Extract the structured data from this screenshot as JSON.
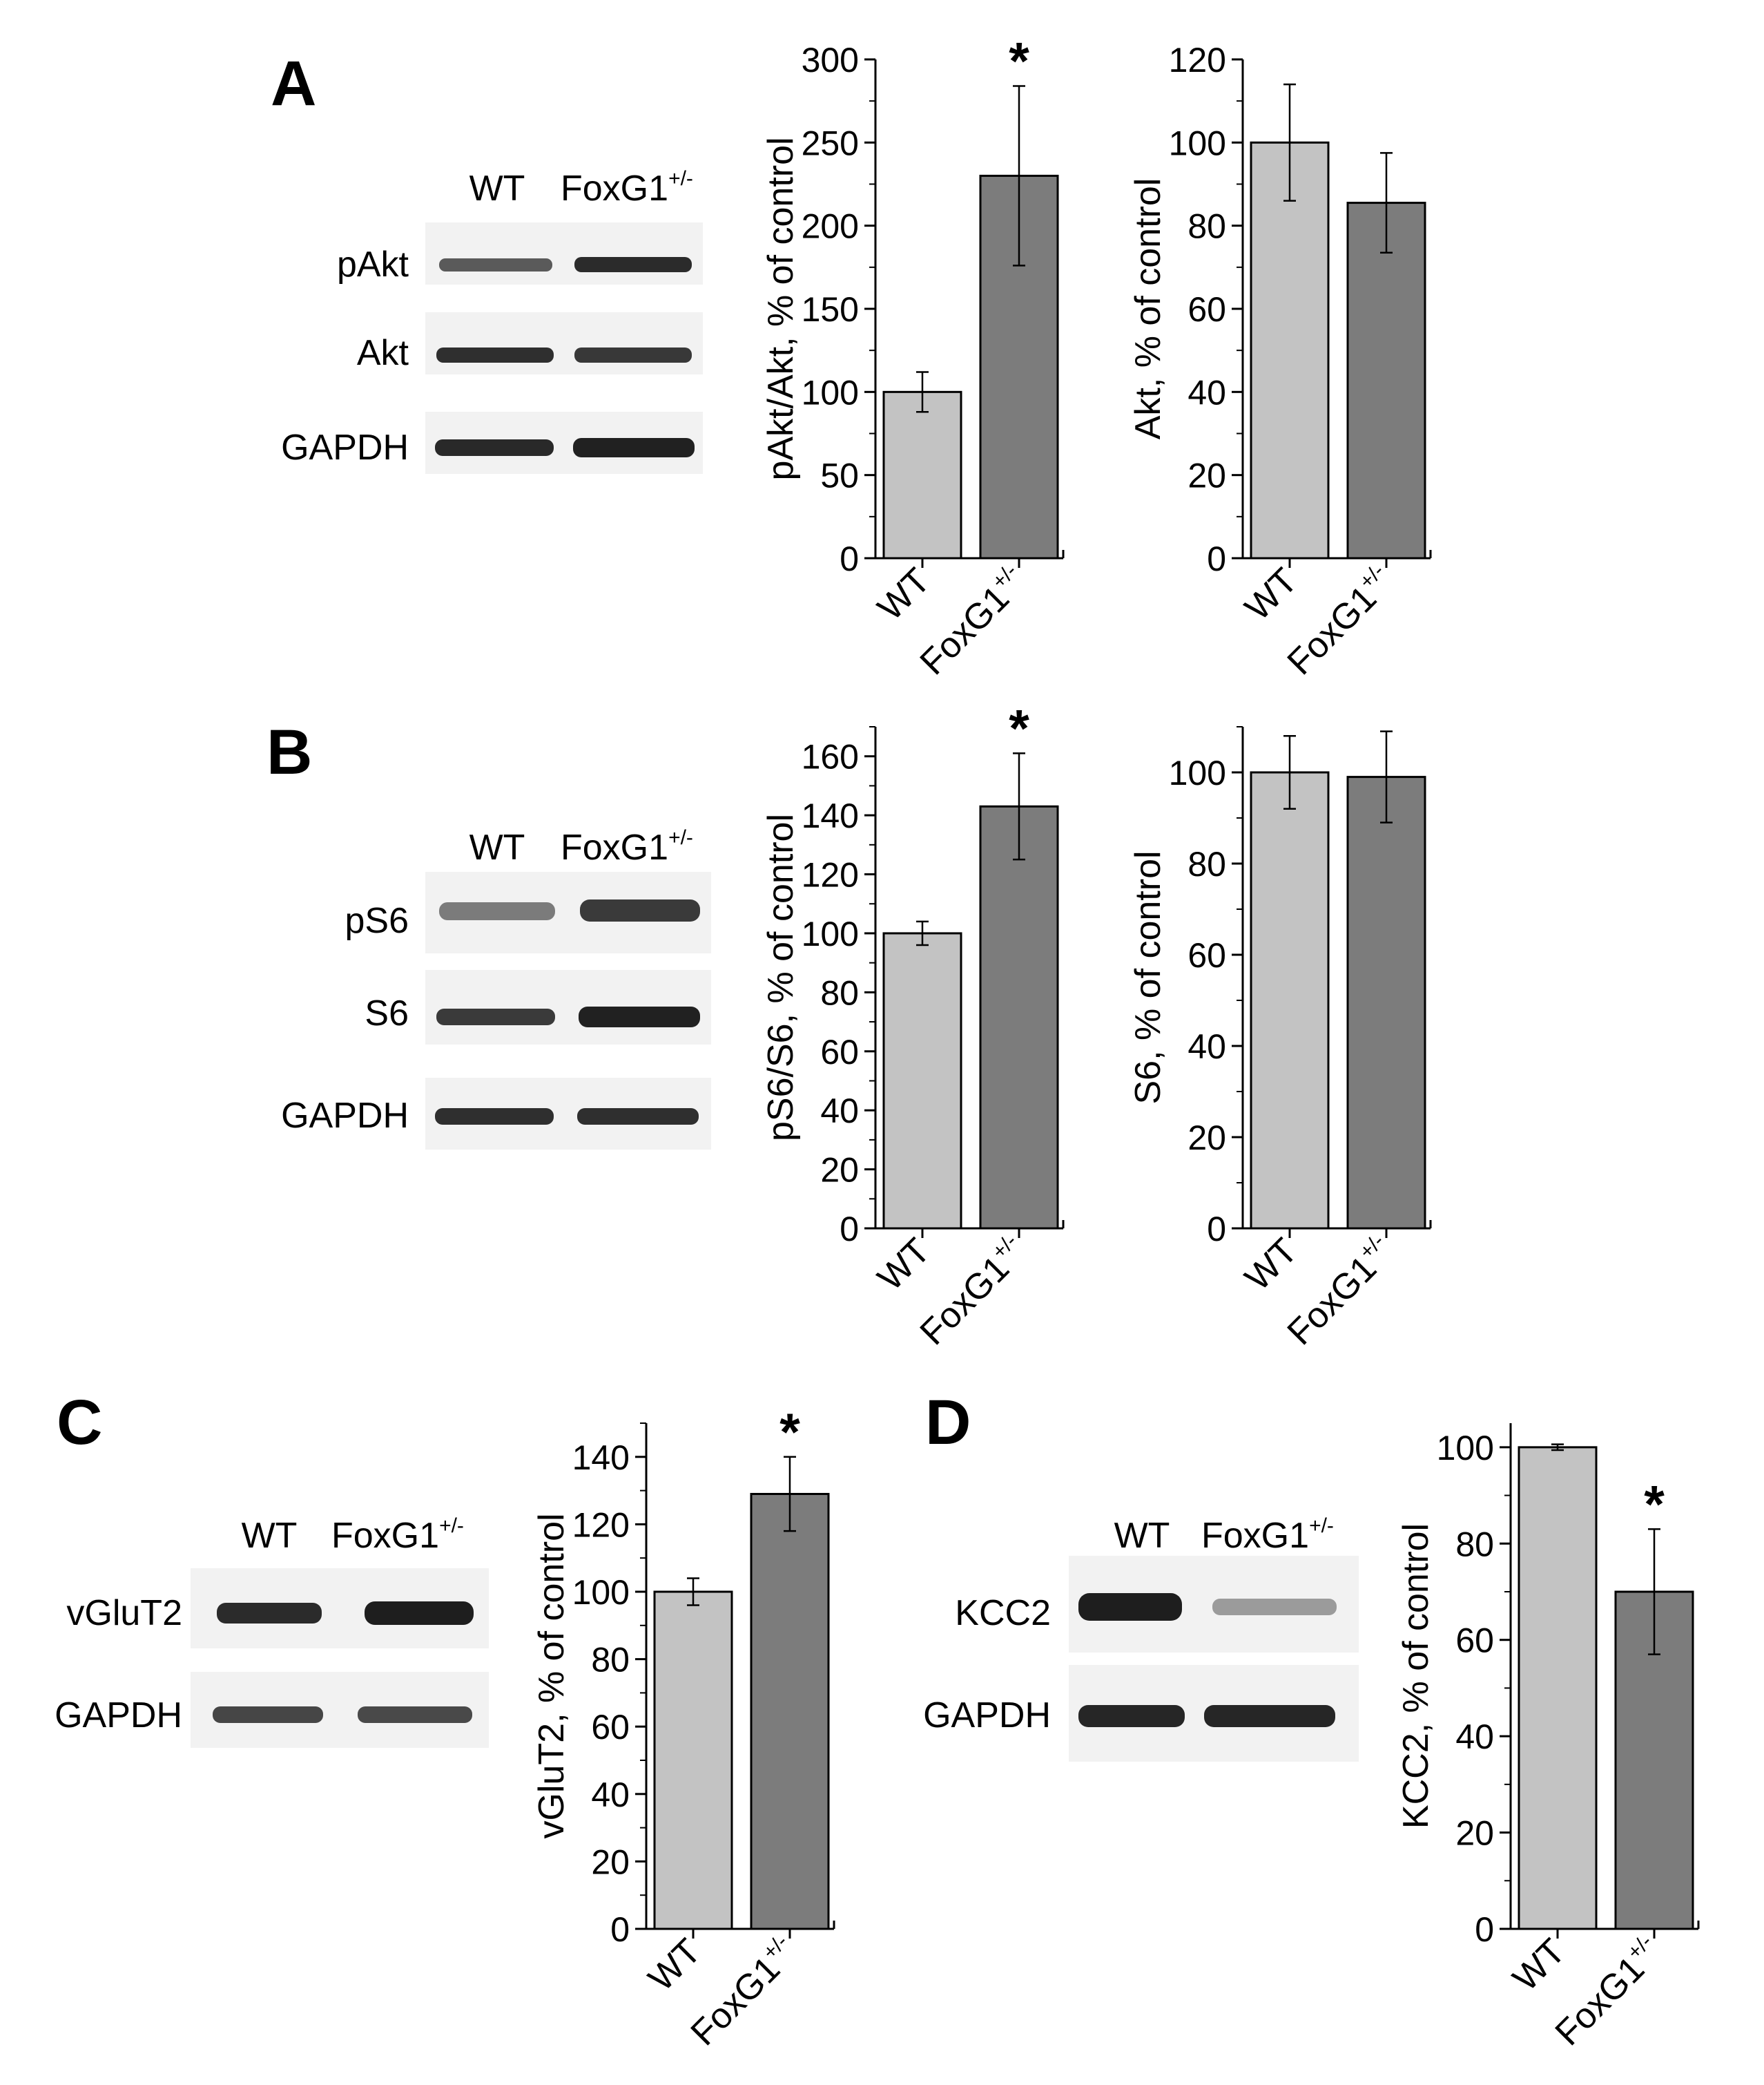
{
  "panels": [
    {
      "letter": "A",
      "blot": {
        "lanes": [
          "WT",
          "FoxG1"
        ],
        "lane_sup": "+/-",
        "rows": [
          "pAkt",
          "Akt",
          "GAPDH"
        ]
      }
    },
    {
      "letter": "B",
      "blot": {
        "lanes": [
          "WT",
          "FoxG1"
        ],
        "lane_sup": "+/-",
        "rows": [
          "pS6",
          "S6",
          "GAPDH"
        ]
      }
    },
    {
      "letter": "C",
      "blot": {
        "lanes": [
          "WT",
          "FoxG1"
        ],
        "lane_sup": "+/-",
        "rows": [
          "vGluT2",
          "GAPDH"
        ]
      }
    },
    {
      "letter": "D",
      "blot": {
        "lanes": [
          "WT",
          "FoxG1"
        ],
        "lane_sup": "+/-",
        "rows": [
          "KCC2",
          "GAPDH"
        ]
      }
    }
  ],
  "colors": {
    "wt_bar": "#c3c3c3",
    "foxg1_bar": "#7c7c7c",
    "band": "#1a1a1a",
    "blot_bg": "#f2f2f2"
  },
  "chart_data": [
    {
      "type": "bar",
      "panel": "A",
      "categories": [
        "WT",
        "FoxG1+/-"
      ],
      "values": [
        100,
        230
      ],
      "errors": [
        12,
        54
      ],
      "ylabel": "pAkt/Akt, % of control",
      "ylim": [
        0,
        300
      ],
      "yticks": [
        0,
        50,
        100,
        150,
        200,
        250,
        300
      ],
      "annotations": [
        {
          "category": "FoxG1+/-",
          "text": "*"
        }
      ]
    },
    {
      "type": "bar",
      "panel": "A",
      "categories": [
        "WT",
        "FoxG1+/-"
      ],
      "values": [
        100,
        85.5
      ],
      "errors": [
        14,
        12
      ],
      "ylabel": "Akt, % of control",
      "ylim": [
        0,
        120
      ],
      "yticks": [
        0,
        20,
        40,
        60,
        80,
        100,
        120
      ],
      "annotations": []
    },
    {
      "type": "bar",
      "panel": "B",
      "categories": [
        "WT",
        "FoxG1+/-"
      ],
      "values": [
        100,
        143
      ],
      "errors": [
        4,
        18
      ],
      "ylabel": "pS6/S6, % of control",
      "ylim": [
        0,
        170
      ],
      "yticks": [
        0,
        20,
        40,
        60,
        80,
        100,
        120,
        140,
        160
      ],
      "annotations": [
        {
          "category": "FoxG1+/-",
          "text": "*"
        }
      ]
    },
    {
      "type": "bar",
      "panel": "B",
      "categories": [
        "WT",
        "FoxG1+/-"
      ],
      "values": [
        100,
        99
      ],
      "errors": [
        8,
        10
      ],
      "ylabel": "S6, % of control",
      "ylim": [
        0,
        110
      ],
      "yticks": [
        0,
        20,
        40,
        60,
        80,
        100
      ],
      "annotations": []
    },
    {
      "type": "bar",
      "panel": "C",
      "categories": [
        "WT",
        "FoxG1+/-"
      ],
      "values": [
        100,
        129
      ],
      "errors": [
        4,
        11
      ],
      "ylabel": "vGluT2, % of control",
      "ylim": [
        0,
        150
      ],
      "yticks": [
        0,
        20,
        40,
        60,
        80,
        100,
        120,
        140
      ],
      "annotations": [
        {
          "category": "FoxG1+/-",
          "text": "*"
        }
      ]
    },
    {
      "type": "bar",
      "panel": "D",
      "categories": [
        "WT",
        "FoxG1+/-"
      ],
      "values": [
        100,
        70
      ],
      "errors": [
        0.6,
        13
      ],
      "ylabel": "KCC2, % of control",
      "ylim": [
        0,
        105
      ],
      "yticks": [
        0,
        20,
        40,
        60,
        80,
        100
      ],
      "annotations": [
        {
          "category": "FoxG1+/-",
          "text": "*"
        }
      ]
    }
  ]
}
